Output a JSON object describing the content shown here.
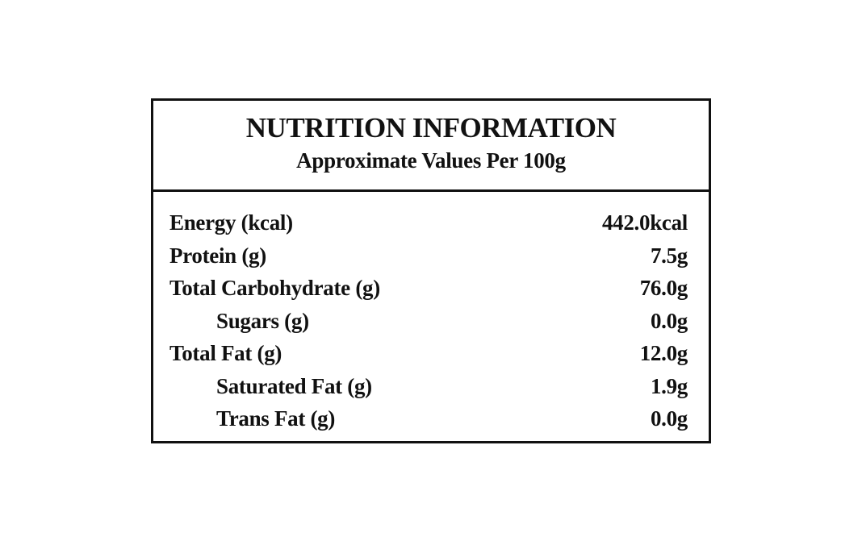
{
  "panel": {
    "title": "NUTRITION INFORMATION",
    "subtitle": "Approximate Values Per 100g",
    "rows": [
      {
        "label": "Energy (kcal)",
        "value": "442.0kcal"
      },
      {
        "label": "Protein (g)",
        "value": "7.5g"
      },
      {
        "label": "Total Carbohydrate (g)",
        "value": "76.0g"
      },
      {
        "label": "Sugars (g)",
        "value": "0.0g"
      },
      {
        "label": "Total Fat (g)",
        "value": "12.0g"
      },
      {
        "label": "Saturated Fat (g)",
        "value": "1.9g"
      },
      {
        "label": "Trans Fat (g)",
        "value": "0.0g"
      }
    ]
  }
}
